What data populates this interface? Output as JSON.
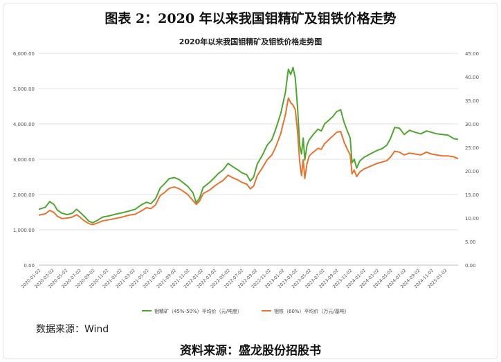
{
  "figure": {
    "title": "图表 2：2020 年以来我国钼精矿及钼铁价格走势",
    "source_data": "数据来源：Wind",
    "source_doc": "资料来源：盛龙股份招股书"
  },
  "colors": {
    "series1": "#4ea72e",
    "series2": "#e8732f",
    "grid": "#d9d9d9",
    "axis_text": "#555555"
  },
  "chart_data": {
    "type": "line",
    "title": "2020年以来我国钼精矿及钼铁价格走势图",
    "y_left": {
      "lim": [
        0,
        6000
      ],
      "ticks": [
        "0.00",
        "1,000.00",
        "2,000.00",
        "3,000.00",
        "4,000.00",
        "5,000.00",
        "6,000.00"
      ]
    },
    "y_right": {
      "lim": [
        0,
        45
      ],
      "ticks": [
        "0.00",
        "5.00",
        "10.00",
        "15.00",
        "20.00",
        "25.00",
        "30.00",
        "35.00",
        "40.00",
        "45.00"
      ]
    },
    "x_ticks": [
      "2020-01-02",
      "2020-03-02",
      "2020-05-02",
      "2020-07-02",
      "2020-09-02",
      "2020-11-02",
      "2021-01-02",
      "2021-03-02",
      "2021-05-02",
      "2021-07-02",
      "2021-09-02",
      "2021-11-02",
      "2022-01-02",
      "2022-03-02",
      "2022-05-02",
      "2022-07-02",
      "2022-09-02",
      "2022-11-02",
      "2023-01-02",
      "2023-03-02",
      "2023-05-02",
      "2023-07-02",
      "2023-09-02",
      "2023-11-02",
      "2024-01-02",
      "2024-03-02",
      "2024-05-02",
      "2024-07-02",
      "2024-09-02",
      "2024-11-02",
      "2025-01-02"
    ],
    "grid": true,
    "legend_position": "bottom",
    "series": [
      {
        "name": "钼精矿（45%-50%）平均价（元/吨度）",
        "axis": "left",
        "points": [
          [
            "2020-01-02",
            1580
          ],
          [
            "2020-02-01",
            1640
          ],
          [
            "2020-02-20",
            1800
          ],
          [
            "2020-03-10",
            1720
          ],
          [
            "2020-03-25",
            1560
          ],
          [
            "2020-04-15",
            1470
          ],
          [
            "2020-05-10",
            1430
          ],
          [
            "2020-06-01",
            1470
          ],
          [
            "2020-06-20",
            1580
          ],
          [
            "2020-07-05",
            1500
          ],
          [
            "2020-07-25",
            1380
          ],
          [
            "2020-08-15",
            1240
          ],
          [
            "2020-09-01",
            1200
          ],
          [
            "2020-09-20",
            1260
          ],
          [
            "2020-10-15",
            1360
          ],
          [
            "2020-11-10",
            1390
          ],
          [
            "2020-12-10",
            1440
          ],
          [
            "2021-01-10",
            1480
          ],
          [
            "2021-02-10",
            1530
          ],
          [
            "2021-03-10",
            1580
          ],
          [
            "2021-04-10",
            1720
          ],
          [
            "2021-05-01",
            1780
          ],
          [
            "2021-05-20",
            1740
          ],
          [
            "2021-06-10",
            1880
          ],
          [
            "2021-07-01",
            2180
          ],
          [
            "2021-07-20",
            2300
          ],
          [
            "2021-08-10",
            2450
          ],
          [
            "2021-09-02",
            2480
          ],
          [
            "2021-09-25",
            2420
          ],
          [
            "2021-10-15",
            2320
          ],
          [
            "2021-11-02",
            2230
          ],
          [
            "2021-11-25",
            2050
          ],
          [
            "2021-12-10",
            1760
          ],
          [
            "2021-12-25",
            1900
          ],
          [
            "2022-01-10",
            2200
          ],
          [
            "2022-02-10",
            2350
          ],
          [
            "2022-03-02",
            2480
          ],
          [
            "2022-03-20",
            2600
          ],
          [
            "2022-04-10",
            2700
          ],
          [
            "2022-05-02",
            2880
          ],
          [
            "2022-05-25",
            2780
          ],
          [
            "2022-06-15",
            2700
          ],
          [
            "2022-07-02",
            2620
          ],
          [
            "2022-07-25",
            2560
          ],
          [
            "2022-08-10",
            2380
          ],
          [
            "2022-08-25",
            2500
          ],
          [
            "2022-09-10",
            2860
          ],
          [
            "2022-10-02",
            3100
          ],
          [
            "2022-10-25",
            3400
          ],
          [
            "2022-11-15",
            3550
          ],
          [
            "2022-12-05",
            3900
          ],
          [
            "2022-12-25",
            4300
          ],
          [
            "2023-01-15",
            4900
          ],
          [
            "2023-01-28",
            5550
          ],
          [
            "2023-02-08",
            5400
          ],
          [
            "2023-02-18",
            5600
          ],
          [
            "2023-02-28",
            5300
          ],
          [
            "2023-03-10",
            4500
          ],
          [
            "2023-03-20",
            3400
          ],
          [
            "2023-03-28",
            3150
          ],
          [
            "2023-04-05",
            3600
          ],
          [
            "2023-04-12",
            2980
          ],
          [
            "2023-04-22",
            3400
          ],
          [
            "2023-05-02",
            3550
          ],
          [
            "2023-05-20",
            3700
          ],
          [
            "2023-06-10",
            3850
          ],
          [
            "2023-06-25",
            3800
          ],
          [
            "2023-07-10",
            4000
          ],
          [
            "2023-07-28",
            4100
          ],
          [
            "2023-08-15",
            4200
          ],
          [
            "2023-09-02",
            4350
          ],
          [
            "2023-09-20",
            4400
          ],
          [
            "2023-10-05",
            4050
          ],
          [
            "2023-10-20",
            3800
          ],
          [
            "2023-11-02",
            3600
          ],
          [
            "2023-11-10",
            2900
          ],
          [
            "2023-11-20",
            3000
          ],
          [
            "2023-12-01",
            2750
          ],
          [
            "2023-12-15",
            2950
          ],
          [
            "2024-01-02",
            3050
          ],
          [
            "2024-02-01",
            3150
          ],
          [
            "2024-03-02",
            3250
          ],
          [
            "2024-03-25",
            3300
          ],
          [
            "2024-04-15",
            3400
          ],
          [
            "2024-05-02",
            3600
          ],
          [
            "2024-05-20",
            3900
          ],
          [
            "2024-06-10",
            3880
          ],
          [
            "2024-07-02",
            3700
          ],
          [
            "2024-07-25",
            3820
          ],
          [
            "2024-08-20",
            3760
          ],
          [
            "2024-09-15",
            3720
          ],
          [
            "2024-10-10",
            3800
          ],
          [
            "2024-11-02",
            3760
          ],
          [
            "2024-11-25",
            3720
          ],
          [
            "2024-12-20",
            3700
          ],
          [
            "2025-01-15",
            3680
          ],
          [
            "2025-02-10",
            3580
          ],
          [
            "2025-03-01",
            3560
          ]
        ]
      },
      {
        "name": "钼铁（60%）平均价（万元/基吨）",
        "axis": "right",
        "points": [
          [
            "2020-01-02",
            10.6
          ],
          [
            "2020-02-01",
            10.9
          ],
          [
            "2020-02-20",
            11.6
          ],
          [
            "2020-03-10",
            11.2
          ],
          [
            "2020-03-25",
            10.4
          ],
          [
            "2020-04-15",
            9.9
          ],
          [
            "2020-05-10",
            10.0
          ],
          [
            "2020-06-01",
            10.2
          ],
          [
            "2020-06-20",
            10.7
          ],
          [
            "2020-07-05",
            10.2
          ],
          [
            "2020-07-25",
            9.4
          ],
          [
            "2020-08-15",
            8.8
          ],
          [
            "2020-09-01",
            8.6
          ],
          [
            "2020-09-20",
            8.9
          ],
          [
            "2020-10-15",
            9.4
          ],
          [
            "2020-11-10",
            9.6
          ],
          [
            "2020-12-10",
            9.9
          ],
          [
            "2021-01-10",
            10.2
          ],
          [
            "2021-02-10",
            10.6
          ],
          [
            "2021-03-10",
            10.8
          ],
          [
            "2021-04-10",
            11.6
          ],
          [
            "2021-05-01",
            12.2
          ],
          [
            "2021-05-20",
            12.0
          ],
          [
            "2021-06-10",
            12.8
          ],
          [
            "2021-07-01",
            14.8
          ],
          [
            "2021-07-20",
            15.4
          ],
          [
            "2021-08-10",
            16.3
          ],
          [
            "2021-09-02",
            16.6
          ],
          [
            "2021-09-25",
            16.2
          ],
          [
            "2021-10-15",
            15.6
          ],
          [
            "2021-11-02",
            15.0
          ],
          [
            "2021-11-25",
            13.7
          ],
          [
            "2021-12-10",
            12.9
          ],
          [
            "2021-12-25",
            13.6
          ],
          [
            "2022-01-10",
            15.2
          ],
          [
            "2022-02-10",
            16.0
          ],
          [
            "2022-03-02",
            16.8
          ],
          [
            "2022-03-20",
            17.4
          ],
          [
            "2022-04-10",
            18.0
          ],
          [
            "2022-05-02",
            19.1
          ],
          [
            "2022-05-25",
            18.5
          ],
          [
            "2022-06-15",
            18.1
          ],
          [
            "2022-07-02",
            17.6
          ],
          [
            "2022-07-25",
            17.2
          ],
          [
            "2022-08-10",
            16.2
          ],
          [
            "2022-08-25",
            16.8
          ],
          [
            "2022-09-10",
            19.0
          ],
          [
            "2022-10-02",
            20.6
          ],
          [
            "2022-10-25",
            22.4
          ],
          [
            "2022-11-15",
            23.4
          ],
          [
            "2022-12-05",
            25.4
          ],
          [
            "2022-12-25",
            28.0
          ],
          [
            "2023-01-15",
            32.0
          ],
          [
            "2023-01-28",
            35.5
          ],
          [
            "2023-02-08",
            34.5
          ],
          [
            "2023-02-18",
            34.0
          ],
          [
            "2023-02-28",
            33.0
          ],
          [
            "2023-03-10",
            28.5
          ],
          [
            "2023-03-20",
            22.0
          ],
          [
            "2023-03-28",
            19.0
          ],
          [
            "2023-04-05",
            22.4
          ],
          [
            "2023-04-12",
            18.4
          ],
          [
            "2023-04-22",
            21.6
          ],
          [
            "2023-05-02",
            23.2
          ],
          [
            "2023-05-20",
            24.0
          ],
          [
            "2023-06-10",
            24.8
          ],
          [
            "2023-06-25",
            24.6
          ],
          [
            "2023-07-10",
            25.8
          ],
          [
            "2023-07-28",
            26.6
          ],
          [
            "2023-08-15",
            27.4
          ],
          [
            "2023-09-02",
            28.2
          ],
          [
            "2023-09-20",
            28.4
          ],
          [
            "2023-10-05",
            26.2
          ],
          [
            "2023-10-20",
            24.6
          ],
          [
            "2023-11-02",
            23.4
          ],
          [
            "2023-11-10",
            19.4
          ],
          [
            "2023-11-20",
            20.2
          ],
          [
            "2023-12-01",
            18.8
          ],
          [
            "2023-12-15",
            19.8
          ],
          [
            "2024-01-02",
            20.4
          ],
          [
            "2024-02-01",
            21.0
          ],
          [
            "2024-03-02",
            21.6
          ],
          [
            "2024-03-25",
            21.9
          ],
          [
            "2024-04-15",
            22.2
          ],
          [
            "2024-05-02",
            23.0
          ],
          [
            "2024-05-20",
            24.2
          ],
          [
            "2024-06-10",
            24.0
          ],
          [
            "2024-07-02",
            23.4
          ],
          [
            "2024-07-25",
            23.8
          ],
          [
            "2024-08-20",
            23.6
          ],
          [
            "2024-09-15",
            23.4
          ],
          [
            "2024-10-10",
            24.0
          ],
          [
            "2024-11-02",
            23.6
          ],
          [
            "2024-11-25",
            23.4
          ],
          [
            "2024-12-20",
            23.2
          ],
          [
            "2025-01-15",
            23.2
          ],
          [
            "2025-02-10",
            23.0
          ],
          [
            "2025-03-01",
            22.6
          ]
        ]
      }
    ]
  }
}
